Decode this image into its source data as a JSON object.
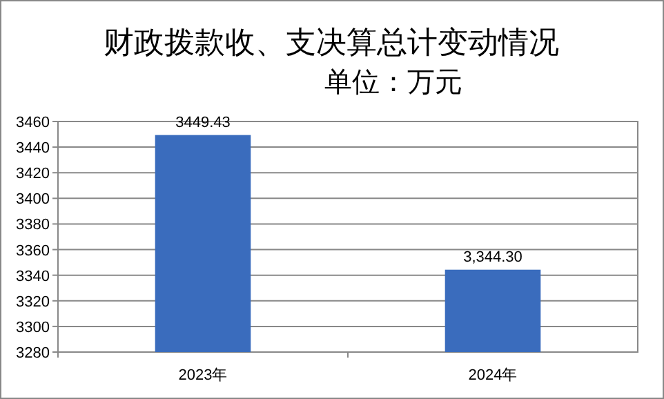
{
  "chart_data": {
    "type": "bar",
    "title": "财政拨款收、支决算总计变动情况",
    "subtitle": "单位：万元",
    "categories": [
      "2023年",
      "2024年"
    ],
    "values": [
      3449.43,
      3344.3
    ],
    "value_labels": [
      "3449.43",
      "3,344.30"
    ],
    "color": "#3a6cbd",
    "ylim": [
      3280,
      3460
    ],
    "yticks": [
      3280,
      3300,
      3320,
      3340,
      3360,
      3380,
      3400,
      3420,
      3440,
      3460
    ],
    "grid": "y"
  }
}
